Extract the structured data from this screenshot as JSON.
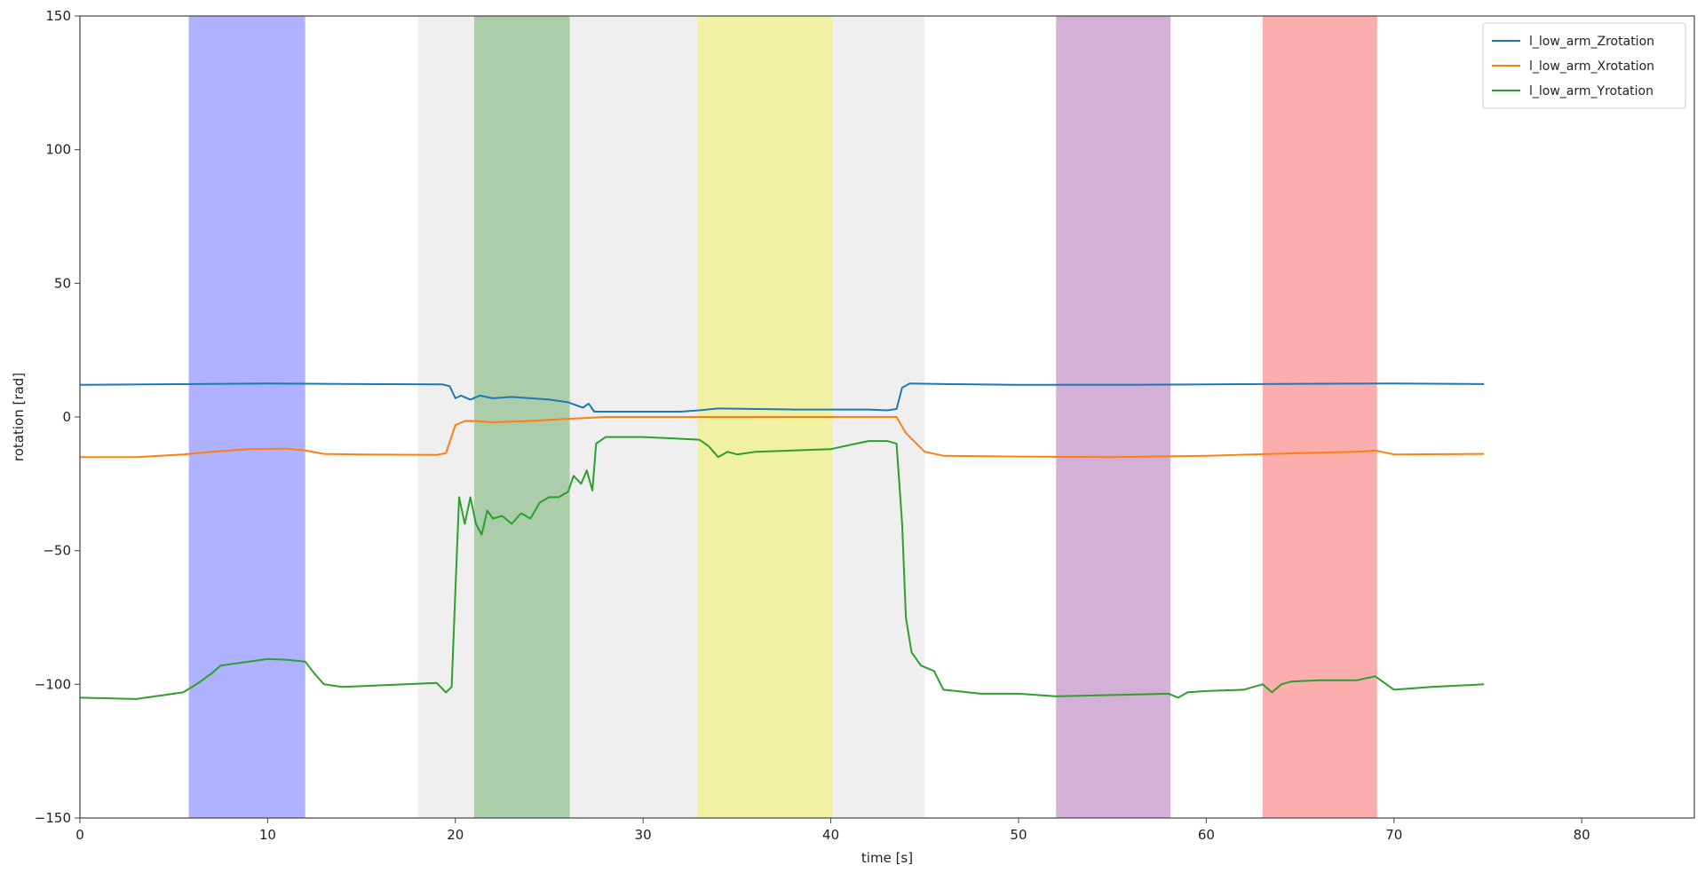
{
  "chart_data": {
    "type": "line",
    "title": "",
    "xlabel": "time [s]",
    "ylabel": "rotation [rad]",
    "xlim": [
      0,
      86
    ],
    "ylim": [
      -150,
      150
    ],
    "xticks": [
      0,
      10,
      20,
      30,
      40,
      50,
      60,
      70,
      80
    ],
    "yticks": [
      -150,
      -100,
      -50,
      0,
      50,
      100,
      150
    ],
    "grid": false,
    "legend": "top-right",
    "bands": [
      {
        "x0": 5.8,
        "x1": 12.0,
        "color": "#aeb2ff"
      },
      {
        "x0": 18.0,
        "x1": 21.0,
        "color": "#efefef"
      },
      {
        "x0": 21.0,
        "x1": 26.1,
        "color": "#abcda9"
      },
      {
        "x0": 26.1,
        "x1": 32.9,
        "color": "#efefef"
      },
      {
        "x0": 32.9,
        "x1": 40.1,
        "color": "#f1f1a3"
      },
      {
        "x0": 40.1,
        "x1": 45.0,
        "color": "#efefef"
      },
      {
        "x0": 52.0,
        "x1": 58.1,
        "color": "#d4b0d6"
      },
      {
        "x0": 63.0,
        "x1": 69.1,
        "color": "#fcadad"
      }
    ],
    "series": [
      {
        "name": "l_low_arm_Zrotation",
        "color": "#1f77b4",
        "points": [
          [
            0,
            12
          ],
          [
            6,
            12.3
          ],
          [
            10,
            12.5
          ],
          [
            15,
            12.3
          ],
          [
            19.3,
            12.2
          ],
          [
            19.7,
            11.5
          ],
          [
            20,
            7
          ],
          [
            20.3,
            8
          ],
          [
            20.8,
            6.5
          ],
          [
            21.3,
            8
          ],
          [
            22,
            7
          ],
          [
            23,
            7.5
          ],
          [
            24,
            7
          ],
          [
            25,
            6.5
          ],
          [
            26,
            5.5
          ],
          [
            26.8,
            3.5
          ],
          [
            27.1,
            5
          ],
          [
            27.4,
            2
          ],
          [
            28,
            2
          ],
          [
            32,
            2
          ],
          [
            33,
            2.5
          ],
          [
            34,
            3.2
          ],
          [
            36,
            3
          ],
          [
            38,
            2.8
          ],
          [
            40,
            2.8
          ],
          [
            42,
            2.8
          ],
          [
            43,
            2.5
          ],
          [
            43.5,
            3
          ],
          [
            43.8,
            11
          ],
          [
            44.2,
            12.5
          ],
          [
            46,
            12.3
          ],
          [
            50,
            12
          ],
          [
            55,
            12
          ],
          [
            60,
            12.2
          ],
          [
            65,
            12.4
          ],
          [
            70,
            12.5
          ],
          [
            74.8,
            12.3
          ]
        ]
      },
      {
        "name": "l_low_arm_Xrotation",
        "color": "#ff7f0e",
        "points": [
          [
            0,
            -15
          ],
          [
            3,
            -15
          ],
          [
            5.5,
            -14
          ],
          [
            7,
            -13
          ],
          [
            9,
            -12
          ],
          [
            11,
            -11.8
          ],
          [
            12,
            -12.5
          ],
          [
            13,
            -13.8
          ],
          [
            15,
            -14
          ],
          [
            19,
            -14.2
          ],
          [
            19.5,
            -13.5
          ],
          [
            20,
            -3
          ],
          [
            20.5,
            -1.5
          ],
          [
            21,
            -1.5
          ],
          [
            22,
            -2
          ],
          [
            24,
            -1.5
          ],
          [
            26,
            -0.7
          ],
          [
            28,
            0
          ],
          [
            30,
            0
          ],
          [
            35,
            0
          ],
          [
            40,
            0
          ],
          [
            43.5,
            0
          ],
          [
            44,
            -6
          ],
          [
            45,
            -13
          ],
          [
            46,
            -14.5
          ],
          [
            50,
            -14.8
          ],
          [
            55,
            -15
          ],
          [
            60,
            -14.5
          ],
          [
            65,
            -13.5
          ],
          [
            68,
            -13
          ],
          [
            69,
            -12.5
          ],
          [
            70,
            -14
          ],
          [
            74.8,
            -13.8
          ]
        ]
      },
      {
        "name": "l_low_arm_Yrotation",
        "color": "#2ca02c",
        "points": [
          [
            0,
            -105
          ],
          [
            3,
            -105.5
          ],
          [
            5.5,
            -103
          ],
          [
            6.2,
            -100
          ],
          [
            7,
            -96
          ],
          [
            7.5,
            -93
          ],
          [
            9,
            -91.5
          ],
          [
            10,
            -90.5
          ],
          [
            11,
            -90.8
          ],
          [
            12,
            -91.5
          ],
          [
            12.5,
            -96
          ],
          [
            13,
            -100
          ],
          [
            14,
            -101
          ],
          [
            19,
            -99.5
          ],
          [
            19.5,
            -103
          ],
          [
            19.8,
            -101
          ],
          [
            20,
            -65
          ],
          [
            20.2,
            -30
          ],
          [
            20.5,
            -40
          ],
          [
            20.8,
            -30
          ],
          [
            21.1,
            -40
          ],
          [
            21.4,
            -44
          ],
          [
            21.7,
            -35
          ],
          [
            22,
            -38
          ],
          [
            22.5,
            -37
          ],
          [
            23,
            -40
          ],
          [
            23.5,
            -36
          ],
          [
            24,
            -38
          ],
          [
            24.5,
            -32
          ],
          [
            25,
            -30
          ],
          [
            25.5,
            -30
          ],
          [
            26,
            -28
          ],
          [
            26.3,
            -22
          ],
          [
            26.7,
            -25
          ],
          [
            27,
            -20
          ],
          [
            27.3,
            -27.5
          ],
          [
            27.5,
            -10
          ],
          [
            28,
            -7.5
          ],
          [
            30,
            -7.5
          ],
          [
            33,
            -8.5
          ],
          [
            33.5,
            -11
          ],
          [
            34,
            -15
          ],
          [
            34.5,
            -13
          ],
          [
            35,
            -14
          ],
          [
            36,
            -13
          ],
          [
            38,
            -12.5
          ],
          [
            40,
            -12
          ],
          [
            41,
            -10.5
          ],
          [
            42,
            -9
          ],
          [
            43,
            -9
          ],
          [
            43.5,
            -10
          ],
          [
            43.8,
            -40
          ],
          [
            44,
            -75
          ],
          [
            44.3,
            -88
          ],
          [
            44.8,
            -93
          ],
          [
            45.5,
            -95
          ],
          [
            46,
            -102
          ],
          [
            48,
            -103.5
          ],
          [
            50,
            -103.5
          ],
          [
            51,
            -104
          ],
          [
            52,
            -104.5
          ],
          [
            55,
            -104
          ],
          [
            58,
            -103.5
          ],
          [
            58.5,
            -105
          ],
          [
            59,
            -103
          ],
          [
            60,
            -102.5
          ],
          [
            62,
            -102
          ],
          [
            63,
            -100
          ],
          [
            63.5,
            -103
          ],
          [
            64,
            -100
          ],
          [
            64.5,
            -99
          ],
          [
            66,
            -98.5
          ],
          [
            68,
            -98.5
          ],
          [
            69,
            -97
          ],
          [
            70,
            -102
          ],
          [
            72,
            -101
          ],
          [
            74.8,
            -100
          ]
        ]
      }
    ]
  }
}
